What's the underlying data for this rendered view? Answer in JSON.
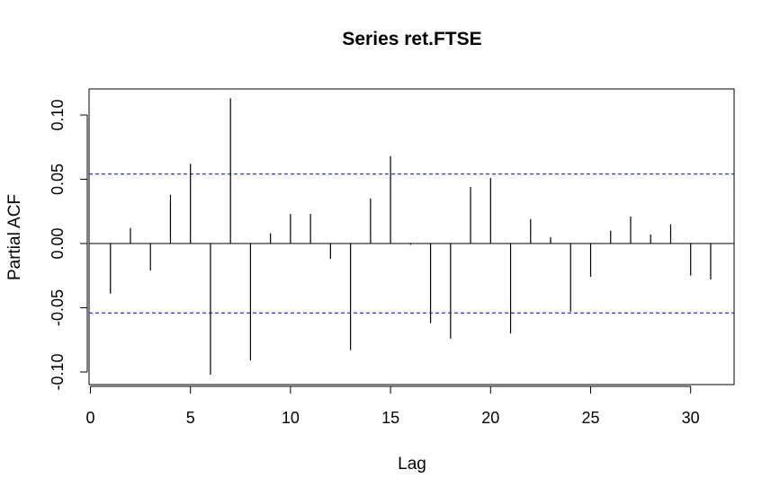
{
  "chart_data": {
    "type": "bar",
    "title": "Series  ret.FTSE",
    "xlabel": "Lag",
    "ylabel": "Partial ACF",
    "x": [
      1,
      2,
      3,
      4,
      5,
      6,
      7,
      8,
      9,
      10,
      11,
      12,
      13,
      14,
      15,
      16,
      17,
      18,
      19,
      20,
      21,
      22,
      23,
      24,
      25,
      26,
      27,
      28,
      29,
      30,
      31
    ],
    "values": [
      -0.039,
      0.012,
      -0.021,
      0.038,
      0.062,
      -0.102,
      0.113,
      -0.091,
      0.008,
      0.023,
      0.023,
      -0.012,
      -0.083,
      0.035,
      0.068,
      -0.001,
      -0.062,
      -0.074,
      0.044,
      0.051,
      -0.07,
      0.019,
      0.005,
      -0.053,
      -0.026,
      0.01,
      0.021,
      0.007,
      0.015,
      -0.025,
      -0.028
    ],
    "confidence_bounds": [
      0.054,
      -0.054
    ],
    "xlim": [
      0,
      32
    ],
    "ylim": [
      -0.11,
      0.12
    ],
    "xticks": [
      0,
      5,
      10,
      15,
      20,
      25,
      30
    ],
    "yticks": [
      -0.1,
      -0.05,
      0.0,
      0.05,
      0.1
    ],
    "xtick_labels": [
      "0",
      "5",
      "10",
      "15",
      "20",
      "25",
      "30"
    ],
    "ytick_labels": [
      "-0.10",
      "-0.05",
      "0.00",
      "0.05",
      "0.10"
    ],
    "grid": false,
    "colors": {
      "bars": "#000000",
      "bounds": "#0000cc",
      "zero_line": "#000000"
    }
  }
}
